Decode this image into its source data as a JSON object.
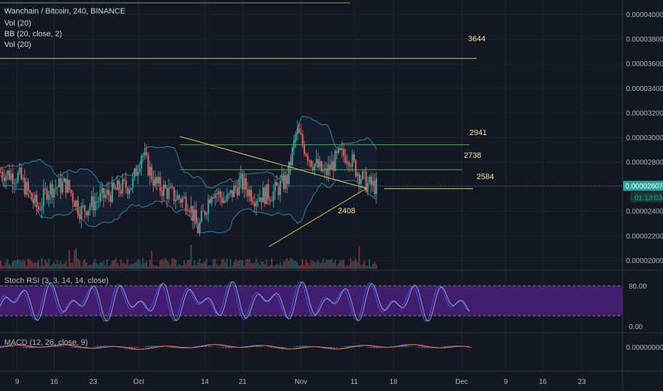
{
  "header": {
    "symbol_line": "Wanchain / Bitcoin, 240, BINANCE",
    "indicators": [
      "Vol (20)",
      "BB (20, close, 2)",
      "Vol (20)"
    ]
  },
  "stoch_panel": {
    "label": "Stoch RSI (3, 3, 14, 14, close)",
    "levels": [
      "80.00",
      "0.00"
    ]
  },
  "macd_panel": {
    "label": "MACD (12, 26, close, 9)",
    "level": "0.00000000"
  },
  "price_axis": {
    "ticks": [
      "0.00004000",
      "0.00003800",
      "0.00003600",
      "0.00003400",
      "0.00003200",
      "0.00003000",
      "0.00002800",
      "0.00002600",
      "0.00002400",
      "0.00002200",
      "0.00002000"
    ],
    "current_price": "0.00002607",
    "countdown": "01:13:03"
  },
  "time_axis": {
    "ticks": [
      "9",
      "16",
      "23",
      "Oct",
      "14",
      "21",
      "Nov",
      "11",
      "18",
      "Dec",
      "9",
      "16",
      "23"
    ]
  },
  "annotations": [
    "3644",
    "2941",
    "2738",
    "2584",
    "2408"
  ],
  "colors": {
    "background": "#131722",
    "up": "#26a69a",
    "down": "#ef5350",
    "bands": "#3aa1b4",
    "trendline": "#d5d552",
    "resistance": "#4caf50",
    "stoch_fill": "#4a1f7a"
  },
  "chart_data": {
    "type": "candlestick",
    "symbol": "Wanchain / Bitcoin",
    "interval": "240",
    "exchange": "BINANCE",
    "y_unit": "BTC",
    "ylim": [
      1.95e-05,
      4.09e-05
    ],
    "x_ticks": [
      "9",
      "16",
      "23",
      "Oct",
      "14",
      "21",
      "Nov",
      "11",
      "18",
      "Dec",
      "9",
      "16",
      "23"
    ],
    "last_price": 2.607e-05,
    "horizontal_levels": [
      {
        "label": "3644",
        "price": 3.644e-05
      },
      {
        "label": "2941",
        "price": 2.941e-05
      },
      {
        "label": "2738",
        "price": 2.738e-05
      },
      {
        "label": "2584",
        "price": 2.584e-05
      },
      {
        "label": "2408",
        "price": 2.408e-05
      }
    ],
    "close_path_sampled": [
      [
        0.0,
        2.72e-05
      ],
      [
        0.04,
        2.68e-05
      ],
      [
        0.06,
        2.54e-05
      ],
      [
        0.08,
        2.42e-05
      ],
      [
        0.1,
        2.58e-05
      ],
      [
        0.14,
        2.62e-05
      ],
      [
        0.17,
        2.4e-05
      ],
      [
        0.21,
        2.5e-05
      ],
      [
        0.25,
        2.58e-05
      ],
      [
        0.28,
        2.62e-05
      ],
      [
        0.3,
        2.88e-05
      ],
      [
        0.33,
        2.62e-05
      ],
      [
        0.37,
        2.52e-05
      ],
      [
        0.4,
        2.48e-05
      ],
      [
        0.42,
        2.25e-05
      ],
      [
        0.45,
        2.58e-05
      ],
      [
        0.48,
        2.48e-05
      ],
      [
        0.51,
        2.64e-05
      ],
      [
        0.54,
        2.52e-05
      ],
      [
        0.58,
        2.55e-05
      ],
      [
        0.61,
        2.66e-05
      ],
      [
        0.63,
        3.05e-05
      ],
      [
        0.66,
        2.82e-05
      ],
      [
        0.69,
        2.7e-05
      ],
      [
        0.72,
        2.85e-05
      ],
      [
        0.74,
        2.86e-05
      ],
      [
        0.76,
        2.72e-05
      ],
      [
        0.78,
        2.62e-05
      ],
      [
        0.8,
        2.6e-05
      ]
    ]
  }
}
